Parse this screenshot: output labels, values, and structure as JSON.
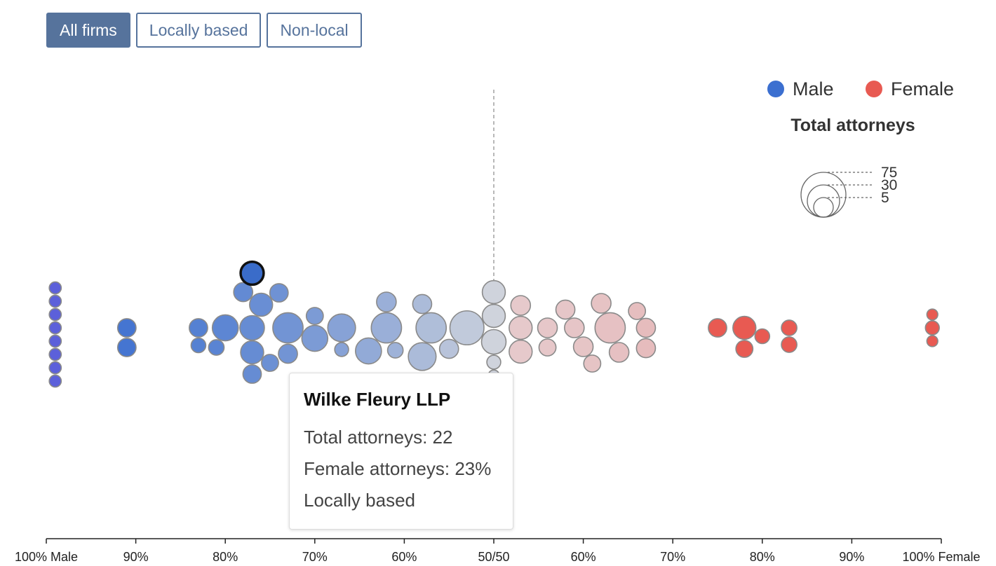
{
  "filters": {
    "all_label": "All firms",
    "local_label": "Locally based",
    "nonlocal_label": "Non-local"
  },
  "legend": {
    "male_label": "Male",
    "female_label": "Female",
    "size_title": "Total attorneys",
    "size_values": [
      "75",
      "30",
      "5"
    ]
  },
  "tooltip": {
    "firm": "Wilke Fleury LLP",
    "total_line": "Total attorneys: 22",
    "female_line": "Female attorneys: 23%",
    "location_line": "Locally based"
  },
  "colors": {
    "male": "#3b6fd0",
    "female": "#e85a52",
    "male_strong": "#4a4fd6",
    "neutral": "#cfd3dc",
    "neutral_pink": "#e6c9cb",
    "highlight": "#3a6cc9",
    "midline": "#999999"
  },
  "chart_data": {
    "type": "scatter",
    "title": "",
    "xlabel": "",
    "ylabel": "",
    "x_ticks": [
      "100% Male",
      "90%",
      "80%",
      "70%",
      "60%",
      "50/50",
      "60%",
      "70%",
      "80%",
      "90%",
      "100% Female"
    ],
    "xlim": [
      0,
      100
    ],
    "midline_value": 50,
    "highlighted": {
      "firm": "Wilke Fleury LLP",
      "female_pct": 23,
      "total": 22,
      "location": "Locally based"
    },
    "series": [
      {
        "values": [
          {
            "female_pct": 1,
            "total": 6
          },
          {
            "female_pct": 1,
            "total": 6
          },
          {
            "female_pct": 1,
            "total": 6
          },
          {
            "female_pct": 1,
            "total": 6
          },
          {
            "female_pct": 1,
            "total": 6
          },
          {
            "female_pct": 1,
            "total": 6
          },
          {
            "female_pct": 1,
            "total": 6
          },
          {
            "female_pct": 1,
            "total": 6
          },
          {
            "female_pct": 9,
            "total": 14
          },
          {
            "female_pct": 9,
            "total": 14
          },
          {
            "female_pct": 17,
            "total": 14
          },
          {
            "female_pct": 17,
            "total": 9
          },
          {
            "female_pct": 19,
            "total": 10
          },
          {
            "female_pct": 20,
            "total": 28
          },
          {
            "female_pct": 22,
            "total": 15
          },
          {
            "female_pct": 23,
            "total": 22
          },
          {
            "female_pct": 23,
            "total": 25
          },
          {
            "female_pct": 23,
            "total": 14
          },
          {
            "female_pct": 24,
            "total": 22
          },
          {
            "female_pct": 25,
            "total": 12
          },
          {
            "female_pct": 26,
            "total": 14
          },
          {
            "female_pct": 27,
            "total": 38
          },
          {
            "female_pct": 27,
            "total": 15
          },
          {
            "female_pct": 30,
            "total": 12
          },
          {
            "female_pct": 30,
            "total": 28
          },
          {
            "female_pct": 33,
            "total": 8
          },
          {
            "female_pct": 33,
            "total": 32
          },
          {
            "female_pct": 36,
            "total": 28
          },
          {
            "female_pct": 38,
            "total": 16
          },
          {
            "female_pct": 38,
            "total": 38
          },
          {
            "female_pct": 39,
            "total": 10
          },
          {
            "female_pct": 42,
            "total": 15
          },
          {
            "female_pct": 42,
            "total": 32
          },
          {
            "female_pct": 43,
            "total": 38
          },
          {
            "female_pct": 45,
            "total": 15
          },
          {
            "female_pct": 47,
            "total": 48
          },
          {
            "female_pct": 50,
            "total": 5
          },
          {
            "female_pct": 50,
            "total": 22
          },
          {
            "female_pct": 50,
            "total": 8
          },
          {
            "female_pct": 50,
            "total": 22
          },
          {
            "female_pct": 50,
            "total": 25
          },
          {
            "female_pct": 53,
            "total": 22
          },
          {
            "female_pct": 53,
            "total": 16
          },
          {
            "female_pct": 53,
            "total": 22
          },
          {
            "female_pct": 56,
            "total": 16
          },
          {
            "female_pct": 56,
            "total": 12
          },
          {
            "female_pct": 58,
            "total": 15
          },
          {
            "female_pct": 59,
            "total": 16
          },
          {
            "female_pct": 60,
            "total": 16
          },
          {
            "female_pct": 61,
            "total": 12
          },
          {
            "female_pct": 62,
            "total": 16
          },
          {
            "female_pct": 63,
            "total": 38
          },
          {
            "female_pct": 64,
            "total": 16
          },
          {
            "female_pct": 66,
            "total": 12
          },
          {
            "female_pct": 67,
            "total": 15
          },
          {
            "female_pct": 67,
            "total": 15
          },
          {
            "female_pct": 75,
            "total": 14
          },
          {
            "female_pct": 78,
            "total": 22
          },
          {
            "female_pct": 78,
            "total": 12
          },
          {
            "female_pct": 80,
            "total": 9
          },
          {
            "female_pct": 83,
            "total": 10
          },
          {
            "female_pct": 83,
            "total": 10
          },
          {
            "female_pct": 99,
            "total": 8
          },
          {
            "female_pct": 99,
            "total": 5
          },
          {
            "female_pct": 99,
            "total": 5
          }
        ]
      }
    ]
  }
}
